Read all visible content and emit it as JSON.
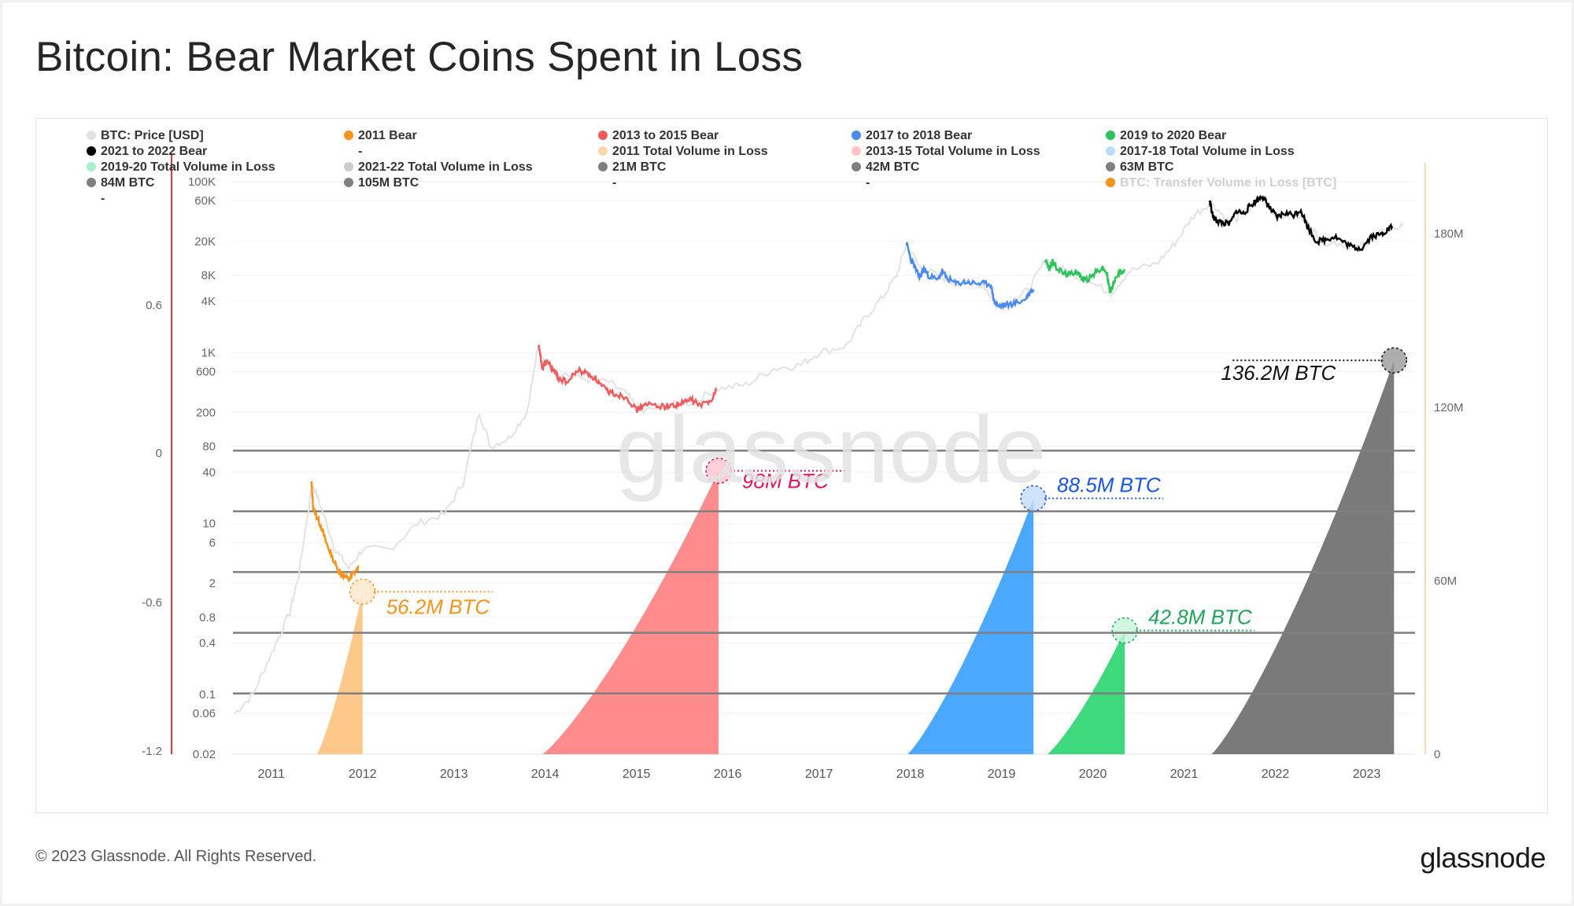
{
  "title": "Bitcoin: Bear Market Coins Spent in Loss",
  "footer": {
    "copyright": "© 2023 Glassnode. All Rights Reserved.",
    "logo": "glassnode"
  },
  "watermark": "glassnode",
  "colors": {
    "price": "#e2e2e2",
    "bear_2011": "#f7931a",
    "bear_2013": "#f05a5a",
    "bear_2017": "#4a8bf0",
    "bear_2019": "#2cc45a",
    "bear_2021": "#000000",
    "vol_2011": "#fdc88a",
    "vol_2013": "#ff8c8c",
    "vol_2017": "#4aa8ff",
    "vol_2019": "#3ed87d",
    "vol_2021": "#7a7a7a",
    "threshold": "#7f7f7f",
    "left_axis_line": "#e53935",
    "right_axis_line": "#fdd9b5"
  },
  "chart_data": {
    "type": "area",
    "title": "Bitcoin: Bear Market Coins Spent in Loss",
    "legend": [
      {
        "label": "BTC: Price [USD]",
        "color": "#e2e2e2"
      },
      {
        "label": "2011 Bear",
        "color": "#f7931a"
      },
      {
        "label": "2013 to 2015 Bear",
        "color": "#f05a5a"
      },
      {
        "label": "2017 to 2018 Bear",
        "color": "#4a8bf0"
      },
      {
        "label": "2019 to 2020 Bear",
        "color": "#2cc45a"
      },
      {
        "label": "2021 to 2022 Bear",
        "color": "#000000"
      },
      {
        "label": "-",
        "color": null
      },
      {
        "label": "2011 Total Volume in Loss",
        "color": "#fdd7a8"
      },
      {
        "label": "2013-15 Total Volume in Loss",
        "color": "#ffc4c4"
      },
      {
        "label": "2017-18 Total Volume in Loss",
        "color": "#b8dcff"
      },
      {
        "label": "2019-20 Total Volume in Loss",
        "color": "#a8f0c6"
      },
      {
        "label": "2021-22 Total Volume in Loss",
        "color": "#cccccc"
      },
      {
        "label": "21M BTC",
        "color": "#7f7f7f"
      },
      {
        "label": "42M BTC",
        "color": "#7f7f7f"
      },
      {
        "label": "63M BTC",
        "color": "#7f7f7f"
      },
      {
        "label": "84M BTC",
        "color": "#7f7f7f"
      },
      {
        "label": "105M BTC",
        "color": "#7f7f7f"
      },
      {
        "label": "-",
        "color": null
      },
      {
        "label": "-",
        "color": null
      },
      {
        "label": "BTC: Transfer Volume in Loss [BTC]",
        "color": "#f7931a"
      },
      {
        "label": "-",
        "color": null
      }
    ],
    "x_ticks": [
      "2011",
      "2012",
      "2013",
      "2014",
      "2015",
      "2016",
      "2017",
      "2018",
      "2019",
      "2020",
      "2021",
      "2022",
      "2023"
    ],
    "price_axis_ticks": [
      "100K",
      "60K",
      "20K",
      "8K",
      "4K",
      "1K",
      "600",
      "200",
      "80",
      "40",
      "10",
      "6",
      "2",
      "0.8",
      "0.4",
      "0.1",
      "0.06",
      "0.02"
    ],
    "left_axis_ticks": [
      "0.6",
      "0",
      "-0.6",
      "-1.2"
    ],
    "right_axis_ticks": [
      "180M",
      "120M",
      "60M",
      "0"
    ],
    "thresholds_btc": [
      21000000,
      42000000,
      63000000,
      84000000,
      105000000
    ],
    "volume_in_loss": [
      {
        "name": "2011 Total Volume in Loss",
        "start": 2011.5,
        "end": 2012.0,
        "peak": 56200000,
        "label": "56.2M BTC"
      },
      {
        "name": "2013-15 Total Volume in Loss",
        "start": 2013.97,
        "end": 2015.9,
        "peak": 98000000,
        "label": "98M BTC"
      },
      {
        "name": "2017-18 Total Volume in Loss",
        "start": 2017.97,
        "end": 2019.35,
        "peak": 88500000,
        "label": "88.5M BTC"
      },
      {
        "name": "2019-20 Total Volume in Loss",
        "start": 2019.5,
        "end": 2020.35,
        "peak": 42800000,
        "label": "42.8M BTC"
      },
      {
        "name": "2021-22 Total Volume in Loss",
        "start": 2021.3,
        "end": 2023.3,
        "peak": 136200000,
        "label": "136.2M BTC"
      }
    ],
    "price_series": [
      [
        2010.6,
        0.06
      ],
      [
        2010.8,
        0.1
      ],
      [
        2011.0,
        0.3
      ],
      [
        2011.2,
        0.9
      ],
      [
        2011.3,
        2.5
      ],
      [
        2011.45,
        30
      ],
      [
        2011.55,
        15
      ],
      [
        2011.7,
        5
      ],
      [
        2011.85,
        3
      ],
      [
        2012.0,
        5
      ],
      [
        2012.3,
        5
      ],
      [
        2012.6,
        10
      ],
      [
        2012.9,
        13
      ],
      [
        2013.1,
        30
      ],
      [
        2013.28,
        200
      ],
      [
        2013.4,
        80
      ],
      [
        2013.6,
        100
      ],
      [
        2013.8,
        200
      ],
      [
        2013.92,
        1100
      ],
      [
        2014.1,
        600
      ],
      [
        2014.4,
        500
      ],
      [
        2014.7,
        450
      ],
      [
        2014.9,
        320
      ],
      [
        2015.05,
        200
      ],
      [
        2015.3,
        240
      ],
      [
        2015.6,
        260
      ],
      [
        2015.9,
        380
      ],
      [
        2016.2,
        420
      ],
      [
        2016.5,
        650
      ],
      [
        2016.8,
        720
      ],
      [
        2017.0,
        1000
      ],
      [
        2017.3,
        1200
      ],
      [
        2017.5,
        2500
      ],
      [
        2017.7,
        4500
      ],
      [
        2017.85,
        8000
      ],
      [
        2017.96,
        19000
      ],
      [
        2018.1,
        10000
      ],
      [
        2018.3,
        8000
      ],
      [
        2018.5,
        6500
      ],
      [
        2018.8,
        6300
      ],
      [
        2018.95,
        3500
      ],
      [
        2019.1,
        3800
      ],
      [
        2019.3,
        5500
      ],
      [
        2019.48,
        12000
      ],
      [
        2019.7,
        9000
      ],
      [
        2019.9,
        7200
      ],
      [
        2020.2,
        5000
      ],
      [
        2020.4,
        9000
      ],
      [
        2020.7,
        11000
      ],
      [
        2020.9,
        19000
      ],
      [
        2021.1,
        40000
      ],
      [
        2021.3,
        58000
      ],
      [
        2021.5,
        33000
      ],
      [
        2021.7,
        45000
      ],
      [
        2021.85,
        67000
      ],
      [
        2022.0,
        40000
      ],
      [
        2022.2,
        43000
      ],
      [
        2022.4,
        29000
      ],
      [
        2022.5,
        20000
      ],
      [
        2022.7,
        19000
      ],
      [
        2022.9,
        16500
      ],
      [
        2023.05,
        22000
      ],
      [
        2023.25,
        28000
      ],
      [
        2023.4,
        30000
      ]
    ],
    "bear_series": [
      {
        "name": "2011 Bear",
        "points": [
          [
            2011.44,
            30
          ],
          [
            2011.46,
            15
          ],
          [
            2011.5,
            12
          ],
          [
            2011.55,
            9
          ],
          [
            2011.6,
            6
          ],
          [
            2011.65,
            4.5
          ],
          [
            2011.72,
            3
          ],
          [
            2011.78,
            2.5
          ],
          [
            2011.85,
            2.2
          ],
          [
            2011.9,
            2.6
          ],
          [
            2011.96,
            3.1
          ]
        ]
      },
      {
        "name": "2013 to 2015 Bear",
        "points": [
          [
            2013.93,
            1150
          ],
          [
            2013.97,
            650
          ],
          [
            2014.02,
            800
          ],
          [
            2014.1,
            600
          ],
          [
            2014.15,
            500
          ],
          [
            2014.25,
            450
          ],
          [
            2014.35,
            620
          ],
          [
            2014.45,
            580
          ],
          [
            2014.55,
            500
          ],
          [
            2014.62,
            400
          ],
          [
            2014.7,
            350
          ],
          [
            2014.8,
            320
          ],
          [
            2014.9,
            300
          ],
          [
            2015.0,
            210
          ],
          [
            2015.05,
            230
          ],
          [
            2015.15,
            250
          ],
          [
            2015.3,
            235
          ],
          [
            2015.4,
            240
          ],
          [
            2015.5,
            255
          ],
          [
            2015.6,
            285
          ],
          [
            2015.7,
            240
          ],
          [
            2015.8,
            270
          ],
          [
            2015.88,
            360
          ]
        ]
      },
      {
        "name": "2017 to 2018 Bear",
        "points": [
          [
            2017.96,
            19000
          ],
          [
            2018.0,
            13000
          ],
          [
            2018.05,
            10000
          ],
          [
            2018.1,
            7500
          ],
          [
            2018.15,
            9500
          ],
          [
            2018.2,
            8000
          ],
          [
            2018.3,
            7000
          ],
          [
            2018.35,
            9000
          ],
          [
            2018.4,
            7500
          ],
          [
            2018.5,
            6400
          ],
          [
            2018.6,
            6700
          ],
          [
            2018.7,
            6500
          ],
          [
            2018.8,
            6400
          ],
          [
            2018.88,
            6300
          ],
          [
            2018.92,
            4000
          ],
          [
            2018.96,
            3500
          ],
          [
            2019.05,
            3600
          ],
          [
            2019.15,
            3800
          ],
          [
            2019.25,
            4100
          ],
          [
            2019.32,
            5200
          ],
          [
            2019.35,
            5400
          ]
        ]
      },
      {
        "name": "2019 to 2020 Bear",
        "points": [
          [
            2019.48,
            12500
          ],
          [
            2019.52,
            9500
          ],
          [
            2019.56,
            11500
          ],
          [
            2019.6,
            10000
          ],
          [
            2019.68,
            8500
          ],
          [
            2019.75,
            8200
          ],
          [
            2019.82,
            9200
          ],
          [
            2019.88,
            7300
          ],
          [
            2019.95,
            7200
          ],
          [
            2020.02,
            8500
          ],
          [
            2020.1,
            9800
          ],
          [
            2020.15,
            8800
          ],
          [
            2020.19,
            5000
          ],
          [
            2020.23,
            6800
          ],
          [
            2020.3,
            8800
          ],
          [
            2020.35,
            9400
          ]
        ]
      },
      {
        "name": "2021 to 2022 Bear",
        "points": [
          [
            2021.28,
            60000
          ],
          [
            2021.32,
            38000
          ],
          [
            2021.36,
            35000
          ],
          [
            2021.42,
            33000
          ],
          [
            2021.5,
            32000
          ],
          [
            2021.58,
            46000
          ],
          [
            2021.65,
            42000
          ],
          [
            2021.72,
            52000
          ],
          [
            2021.8,
            61000
          ],
          [
            2021.86,
            68000
          ],
          [
            2021.9,
            57000
          ],
          [
            2021.95,
            47000
          ],
          [
            2022.02,
            38000
          ],
          [
            2022.1,
            43000
          ],
          [
            2022.2,
            41000
          ],
          [
            2022.28,
            47000
          ],
          [
            2022.35,
            30000
          ],
          [
            2022.45,
            20000
          ],
          [
            2022.55,
            21000
          ],
          [
            2022.65,
            23000
          ],
          [
            2022.75,
            19500
          ],
          [
            2022.85,
            17000
          ],
          [
            2022.95,
            16800
          ],
          [
            2023.05,
            23000
          ],
          [
            2023.15,
            24000
          ],
          [
            2023.22,
            27000
          ],
          [
            2023.28,
            30000
          ]
        ]
      }
    ]
  }
}
